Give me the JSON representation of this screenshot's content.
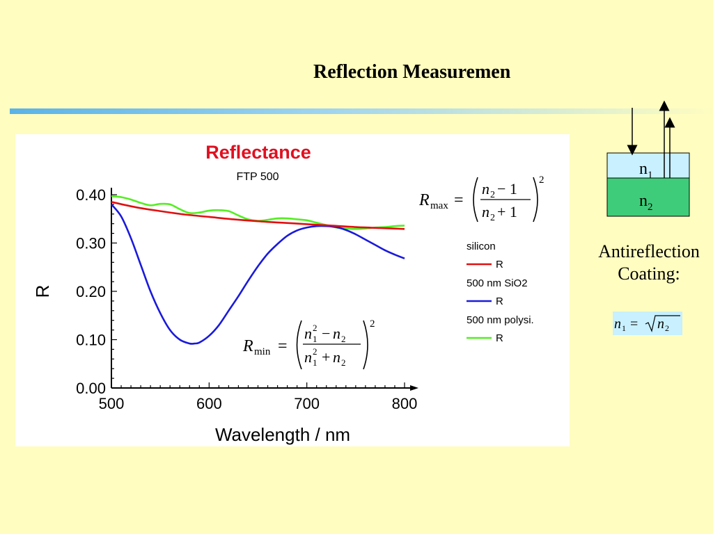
{
  "slide": {
    "title": "Reflection Measuremen",
    "caption_line1": "Antireflection",
    "caption_line2": "Coating:"
  },
  "diagram": {
    "top_layer_label": "n",
    "top_layer_sub": "1",
    "bottom_layer_label": "n",
    "bottom_layer_sub": "2",
    "top_layer_color": "#C8F0FF",
    "bottom_layer_color": "#3FCC7A"
  },
  "formulas": {
    "rmax": "R_max = ((n2 − 1)/(n2 + 1))^2",
    "rmin": "R_min = ((n1^2 − n2)/(n1^2 + n2))^2",
    "coating": "n1 = √n2"
  },
  "chart_data": {
    "type": "line",
    "title": "Reflectance",
    "subtitle": "FTP 500",
    "xlabel": "Wavelength / nm",
    "ylabel": "R",
    "xlim": [
      500,
      800
    ],
    "ylim": [
      0,
      0.4
    ],
    "xticks": [
      "500",
      "600",
      "700",
      "800"
    ],
    "yticks": [
      "0.00",
      "0.10",
      "0.20",
      "0.30",
      "0.40"
    ],
    "legend_position": "right",
    "grid": false,
    "series": [
      {
        "name": "silicon",
        "legend_label": "R",
        "color": "#E01010",
        "x": [
          500,
          525,
          550,
          575,
          600,
          625,
          650,
          675,
          700,
          725,
          750,
          775,
          800
        ],
        "y": [
          0.385,
          0.374,
          0.366,
          0.359,
          0.354,
          0.349,
          0.345,
          0.342,
          0.339,
          0.336,
          0.333,
          0.331,
          0.329
        ]
      },
      {
        "name": "500 nm SiO2",
        "legend_label": "R",
        "color": "#1A1ADC",
        "x": [
          500,
          510,
          520,
          530,
          540,
          550,
          560,
          570,
          580,
          585,
          590,
          600,
          610,
          620,
          630,
          640,
          650,
          660,
          670,
          680,
          690,
          700,
          710,
          720,
          730,
          740,
          750,
          760,
          770,
          780,
          790,
          800
        ],
        "y": [
          0.38,
          0.355,
          0.31,
          0.255,
          0.2,
          0.155,
          0.12,
          0.1,
          0.092,
          0.092,
          0.094,
          0.108,
          0.13,
          0.16,
          0.19,
          0.222,
          0.252,
          0.278,
          0.298,
          0.315,
          0.326,
          0.332,
          0.335,
          0.335,
          0.333,
          0.327,
          0.318,
          0.307,
          0.296,
          0.285,
          0.276,
          0.268
        ]
      },
      {
        "name": "500 nm polysi.",
        "legend_label": "R",
        "color": "#55EE22",
        "x": [
          500,
          510,
          520,
          530,
          540,
          550,
          560,
          570,
          580,
          590,
          600,
          610,
          620,
          630,
          640,
          650,
          660,
          670,
          680,
          690,
          700,
          710,
          720,
          730,
          740,
          750,
          760,
          770,
          780,
          790,
          800
        ],
        "y": [
          0.397,
          0.395,
          0.39,
          0.383,
          0.378,
          0.381,
          0.38,
          0.37,
          0.362,
          0.363,
          0.367,
          0.368,
          0.366,
          0.357,
          0.349,
          0.346,
          0.348,
          0.351,
          0.351,
          0.349,
          0.347,
          0.342,
          0.337,
          0.332,
          0.33,
          0.329,
          0.33,
          0.332,
          0.333,
          0.335,
          0.336
        ]
      }
    ]
  }
}
